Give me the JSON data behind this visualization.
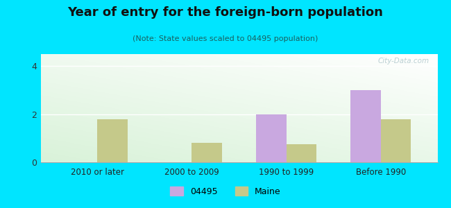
{
  "title": "Year of entry for the foreign-born population",
  "subtitle": "(Note: State values scaled to 04495 population)",
  "categories": [
    "2010 or later",
    "2000 to 2009",
    "1990 to 1999",
    "Before 1990"
  ],
  "values_04495": [
    0,
    0,
    2.0,
    3.0
  ],
  "values_maine": [
    1.8,
    0.8,
    0.75,
    1.8
  ],
  "color_04495": "#c9a8e0",
  "color_maine": "#c5c98a",
  "background_outer": "#00e5ff",
  "yticks": [
    0,
    2,
    4
  ],
  "ylim": [
    0,
    4.5
  ],
  "bar_width": 0.32,
  "legend_04495": "04495",
  "legend_maine": "Maine",
  "watermark": "City-Data.com",
  "title_color": "#1a1a2e",
  "subtitle_color": "#2a6060",
  "grid_color": "#e0e0e0"
}
